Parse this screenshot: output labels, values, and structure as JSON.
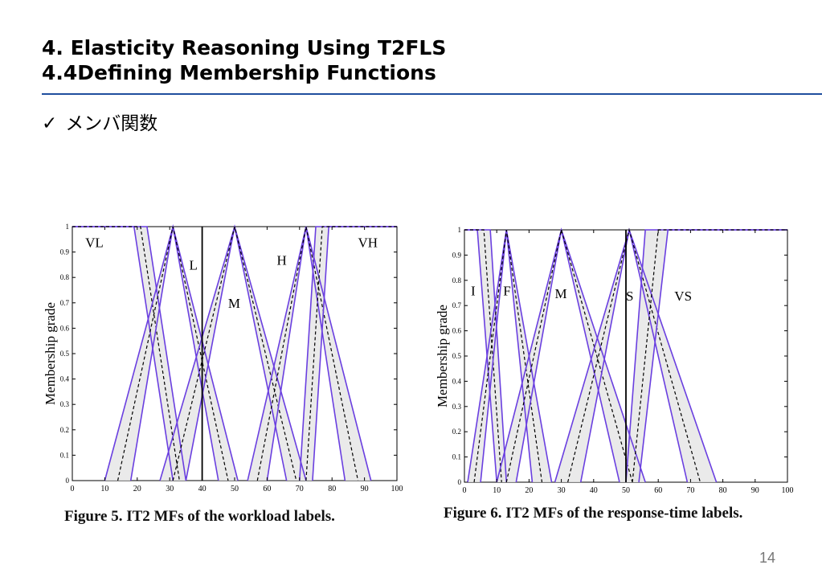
{
  "slide": {
    "title_line1": "4. Elasticity Reasoning Using T2FLS",
    "title_line2": "4.4Defining Membership Functions",
    "bullet_mark": "✓",
    "bullet_text": "メンバ関数",
    "page_number": "14",
    "accent_color": "#1f4e9e"
  },
  "chart_data": [
    {
      "type": "line",
      "caption": "Figure 5. IT2 MFs of the workload labels.",
      "ylabel": "Membership grade",
      "xlim": [
        0,
        100
      ],
      "ylim": [
        0,
        1
      ],
      "xticks": [
        0,
        10,
        20,
        30,
        40,
        50,
        60,
        70,
        80,
        90,
        100
      ],
      "yticks": [
        0,
        0.1,
        0.2,
        0.3,
        0.4,
        0.5,
        0.6,
        0.7,
        0.8,
        0.9,
        1
      ],
      "vline": 40,
      "series": [
        {
          "name": "VL",
          "label_at": [
            4,
            0.92
          ],
          "upper": [
            [
              0,
              1
            ],
            [
              23,
              1
            ],
            [
              35,
              0
            ]
          ],
          "lower": [
            [
              0,
              1
            ],
            [
              19,
              1
            ],
            [
              31,
              0
            ]
          ],
          "mid": [
            [
              0,
              1
            ],
            [
              21,
              1
            ],
            [
              33,
              0
            ]
          ]
        },
        {
          "name": "L",
          "label_at": [
            36,
            0.83
          ],
          "upper": [
            [
              10,
              0
            ],
            [
              31,
              1
            ],
            [
              51,
              0
            ]
          ],
          "lower": [
            [
              18,
              0
            ],
            [
              31,
              1
            ],
            [
              45,
              0
            ]
          ],
          "mid": [
            [
              14,
              0
            ],
            [
              31,
              1
            ],
            [
              48,
              0
            ]
          ]
        },
        {
          "name": "M",
          "label_at": [
            48,
            0.68
          ],
          "upper": [
            [
              27,
              0
            ],
            [
              50,
              1
            ],
            [
              72,
              0
            ]
          ],
          "lower": [
            [
              35,
              0
            ],
            [
              50,
              1
            ],
            [
              66,
              0
            ]
          ],
          "mid": [
            [
              31,
              0
            ],
            [
              50,
              1
            ],
            [
              69,
              0
            ]
          ]
        },
        {
          "name": "H",
          "label_at": [
            63,
            0.85
          ],
          "upper": [
            [
              54,
              0
            ],
            [
              72,
              1
            ],
            [
              92,
              0
            ]
          ],
          "lower": [
            [
              60,
              0
            ],
            [
              72,
              1
            ],
            [
              84,
              0
            ]
          ],
          "mid": [
            [
              57,
              0
            ],
            [
              72,
              1
            ],
            [
              88,
              0
            ]
          ]
        },
        {
          "name": "VH",
          "label_at": [
            88,
            0.92
          ],
          "upper": [
            [
              70,
              0
            ],
            [
              75,
              1
            ],
            [
              100,
              1
            ]
          ],
          "lower": [
            [
              74,
              0
            ],
            [
              79,
              1
            ],
            [
              100,
              1
            ]
          ],
          "mid": [
            [
              72,
              0
            ],
            [
              77,
              1
            ],
            [
              100,
              1
            ]
          ]
        }
      ]
    },
    {
      "type": "line",
      "caption": "Figure 6. IT2 MFs of the response-time labels.",
      "ylabel": "Membership grade",
      "xlim": [
        0,
        100
      ],
      "ylim": [
        0,
        1
      ],
      "xticks": [
        0,
        10,
        20,
        30,
        40,
        50,
        60,
        70,
        80,
        90,
        100
      ],
      "yticks": [
        0,
        0.1,
        0.2,
        0.3,
        0.4,
        0.5,
        0.6,
        0.7,
        0.8,
        0.9,
        1
      ],
      "vline": 50,
      "series": [
        {
          "name": "I",
          "label_at": [
            2,
            0.74
          ],
          "upper": [
            [
              0,
              1
            ],
            [
              8,
              1
            ],
            [
              13,
              0
            ]
          ],
          "lower": [
            [
              0,
              1
            ],
            [
              4,
              1
            ],
            [
              10,
              0
            ]
          ],
          "mid": [
            [
              0,
              1
            ],
            [
              6,
              1
            ],
            [
              11.5,
              0
            ]
          ]
        },
        {
          "name": "F",
          "label_at": [
            12,
            0.74
          ],
          "upper": [
            [
              1,
              0
            ],
            [
              13,
              1
            ],
            [
              27,
              0
            ]
          ],
          "lower": [
            [
              5,
              0
            ],
            [
              13,
              1
            ],
            [
              21,
              0
            ]
          ],
          "mid": [
            [
              3,
              0
            ],
            [
              13,
              1
            ],
            [
              24,
              0
            ]
          ]
        },
        {
          "name": "M",
          "label_at": [
            28,
            0.73
          ],
          "upper": [
            [
              10,
              0
            ],
            [
              30,
              1
            ],
            [
              56,
              0
            ]
          ],
          "lower": [
            [
              16,
              0
            ],
            [
              30,
              1
            ],
            [
              48,
              0
            ]
          ],
          "mid": [
            [
              13,
              0
            ],
            [
              30,
              1
            ],
            [
              52,
              0
            ]
          ]
        },
        {
          "name": "S",
          "label_at": [
            50,
            0.72
          ],
          "upper": [
            [
              28,
              0
            ],
            [
              51,
              1
            ],
            [
              78,
              0
            ]
          ],
          "lower": [
            [
              36,
              0
            ],
            [
              51,
              1
            ],
            [
              69,
              0
            ]
          ],
          "mid": [
            [
              32,
              0
            ],
            [
              51,
              1
            ],
            [
              73,
              0
            ]
          ]
        },
        {
          "name": "VS",
          "label_at": [
            65,
            0.72
          ],
          "upper": [
            [
              50,
              0
            ],
            [
              56,
              1
            ],
            [
              100,
              1
            ]
          ],
          "lower": [
            [
              54,
              0
            ],
            [
              63,
              1
            ],
            [
              100,
              1
            ]
          ],
          "mid": [
            [
              52,
              0
            ],
            [
              60,
              1
            ],
            [
              100,
              1
            ]
          ]
        }
      ]
    }
  ]
}
